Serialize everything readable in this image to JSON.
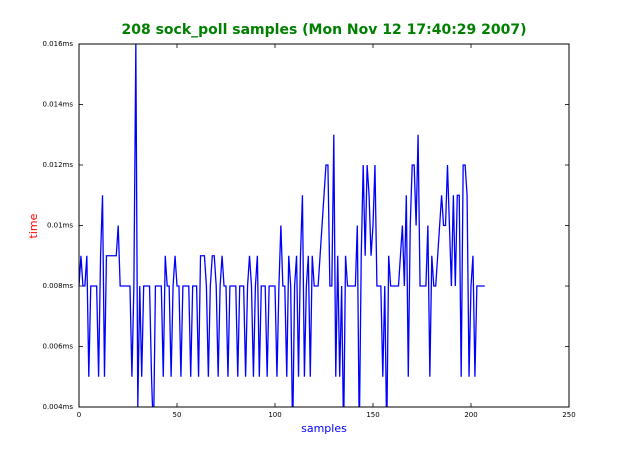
{
  "chart_data": {
    "type": "line",
    "title": "208 sock_poll samples (Mon Nov 12 17:40:29 2007)",
    "xlabel": "samples",
    "ylabel": "time",
    "color": "#0000ff",
    "x": [
      0,
      1,
      2,
      3,
      4,
      5,
      6,
      7,
      8,
      9,
      10,
      11,
      12,
      13,
      14,
      15,
      16,
      17,
      18,
      19,
      20,
      21,
      22,
      23,
      24,
      25,
      26,
      27,
      28,
      29,
      30,
      31,
      32,
      33,
      34,
      35,
      36,
      37,
      38,
      39,
      40,
      41,
      42,
      43,
      44,
      45,
      46,
      47,
      48,
      49,
      50,
      51,
      52,
      53,
      54,
      55,
      56,
      57,
      58,
      59,
      60,
      61,
      62,
      63,
      64,
      65,
      66,
      67,
      68,
      69,
      70,
      71,
      72,
      73,
      74,
      75,
      76,
      77,
      78,
      79,
      80,
      81,
      82,
      83,
      84,
      85,
      86,
      87,
      88,
      89,
      90,
      91,
      92,
      93,
      94,
      95,
      96,
      97,
      98,
      99,
      100,
      101,
      102,
      103,
      104,
      105,
      106,
      107,
      108,
      109,
      110,
      111,
      112,
      113,
      114,
      115,
      116,
      117,
      118,
      119,
      120,
      121,
      122,
      123,
      124,
      125,
      126,
      127,
      128,
      129,
      130,
      131,
      132,
      133,
      134,
      135,
      136,
      137,
      138,
      139,
      140,
      141,
      142,
      143,
      144,
      145,
      146,
      147,
      148,
      149,
      150,
      151,
      152,
      153,
      154,
      155,
      156,
      157,
      158,
      159,
      160,
      161,
      162,
      163,
      164,
      165,
      166,
      167,
      168,
      169,
      170,
      171,
      172,
      173,
      174,
      175,
      176,
      177,
      178,
      179,
      180,
      181,
      182,
      183,
      184,
      185,
      186,
      187,
      188,
      189,
      190,
      191,
      192,
      193,
      194,
      195,
      196,
      197,
      198,
      199,
      200,
      201,
      202,
      203,
      204,
      205,
      206,
      207
    ],
    "values": [
      0.008,
      0.009,
      0.008,
      0.008,
      0.009,
      0.005,
      0.008,
      0.008,
      0.008,
      0.008,
      0.005,
      0.009,
      0.011,
      0.005,
      0.009,
      0.009,
      0.009,
      0.009,
      0.009,
      0.009,
      0.01,
      0.008,
      0.008,
      0.008,
      0.008,
      0.008,
      0.008,
      0.005,
      0.008,
      0.016,
      0.004,
      0.008,
      0.005,
      0.008,
      0.008,
      0.008,
      0.008,
      0.005,
      0.003,
      0.008,
      0.008,
      0.008,
      0.008,
      0.005,
      0.009,
      0.008,
      0.008,
      0.005,
      0.008,
      0.009,
      0.008,
      0.008,
      0.005,
      0.008,
      0.008,
      0.008,
      0.008,
      0.005,
      0.008,
      0.008,
      0.008,
      0.005,
      0.009,
      0.009,
      0.009,
      0.008,
      0.005,
      0.008,
      0.009,
      0.009,
      0.008,
      0.005,
      0.008,
      0.009,
      0.008,
      0.008,
      0.005,
      0.008,
      0.008,
      0.008,
      0.008,
      0.005,
      0.008,
      0.008,
      0.008,
      0.005,
      0.008,
      0.009,
      0.008,
      0.005,
      0.008,
      0.009,
      0.005,
      0.008,
      0.008,
      0.008,
      0.005,
      0.008,
      0.008,
      0.008,
      0.008,
      0.005,
      0.008,
      0.01,
      0.008,
      0.008,
      0.005,
      0.009,
      0.008,
      0.003,
      0.008,
      0.009,
      0.005,
      0.009,
      0.011,
      0.005,
      0.008,
      0.009,
      0.005,
      0.009,
      0.008,
      0.008,
      0.008,
      0.009,
      0.01,
      0.011,
      0.012,
      0.012,
      0.008,
      0.008,
      0.013,
      0.005,
      0.009,
      0.005,
      0.008,
      0.003,
      0.009,
      0.008,
      0.008,
      0.008,
      0.008,
      0.008,
      0.01,
      0.003,
      0.009,
      0.012,
      0.009,
      0.012,
      0.011,
      0.009,
      0.01,
      0.012,
      0.008,
      0.008,
      0.008,
      0.005,
      0.008,
      0.003,
      0.009,
      0.008,
      0.008,
      0.008,
      0.008,
      0.008,
      0.009,
      0.01,
      0.008,
      0.011,
      0.005,
      0.01,
      0.012,
      0.012,
      0.01,
      0.013,
      0.008,
      0.008,
      0.008,
      0.008,
      0.01,
      0.005,
      0.009,
      0.008,
      0.008,
      0.009,
      0.01,
      0.011,
      0.01,
      0.01,
      0.012,
      0.01,
      0.008,
      0.011,
      0.008,
      0.011,
      0.011,
      0.005,
      0.012,
      0.012,
      0.011,
      0.005,
      0.008,
      0.009,
      0.005,
      0.008,
      0.008,
      0.008,
      0.008,
      0.008
    ],
    "xlim": [
      0,
      250
    ],
    "xticks": [
      0,
      50,
      100,
      150,
      200,
      250
    ],
    "ylim": [
      0.004,
      0.016
    ],
    "yticks": [
      {
        "value": 0.004,
        "label": "0.004ms"
      },
      {
        "value": 0.006,
        "label": "0.006ms"
      },
      {
        "value": 0.008,
        "label": "0.008ms"
      },
      {
        "value": 0.01,
        "label": "0.01ms"
      },
      {
        "value": 0.012,
        "label": "0.012ms"
      },
      {
        "value": 0.014,
        "label": "0.014ms"
      },
      {
        "value": 0.016,
        "label": "0.016ms"
      }
    ]
  }
}
